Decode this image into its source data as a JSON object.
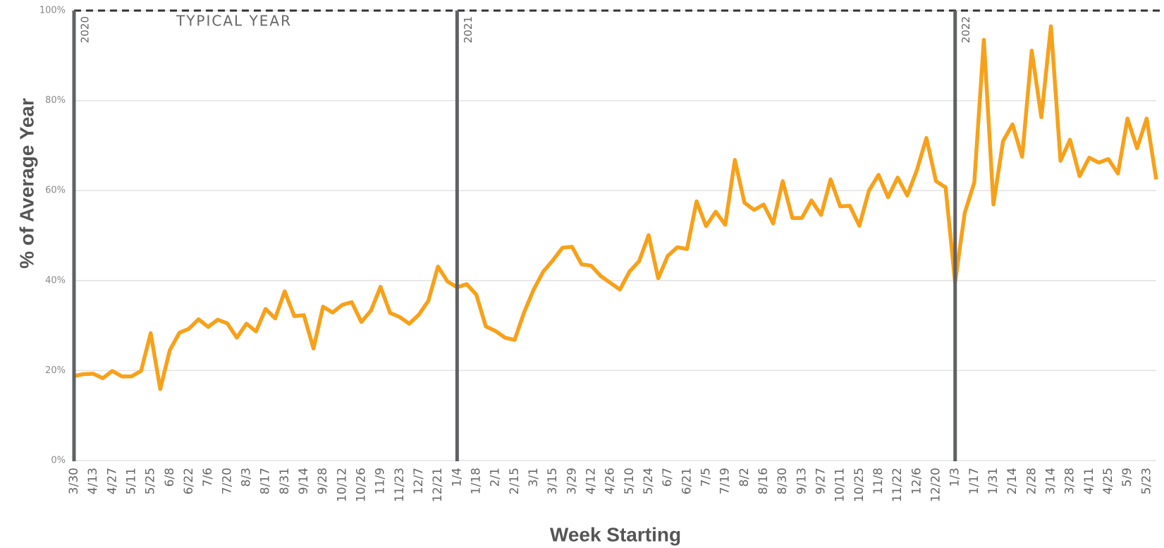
{
  "chart_data": {
    "type": "line",
    "y_label": "% of Average Year",
    "x_label": "Week Starting",
    "categories": [
      "3/30",
      null,
      "4/13",
      null,
      "4/27",
      null,
      "5/11",
      null,
      "5/25",
      null,
      "6/8",
      null,
      "6/22",
      null,
      "7/6",
      null,
      "7/20",
      null,
      "8/3",
      null,
      "8/17",
      null,
      "8/31",
      null,
      "9/14",
      null,
      "9/28",
      null,
      "10/12",
      null,
      "10/26",
      null,
      "11/9",
      null,
      "11/23",
      null,
      "12/7",
      null,
      "12/21",
      null,
      "1/4",
      null,
      "1/18",
      null,
      "2/1",
      null,
      "2/15",
      null,
      "3/1",
      null,
      "3/15",
      null,
      "3/29",
      null,
      "4/12",
      null,
      "4/26",
      null,
      "5/10",
      null,
      "5/24",
      null,
      "6/7",
      null,
      "6/21",
      null,
      "7/5",
      null,
      "7/19",
      null,
      "8/2",
      null,
      "8/16",
      null,
      "8/30",
      null,
      "9/13",
      null,
      "9/27",
      null,
      "10/11",
      null,
      "10/25",
      null,
      "11/8",
      null,
      "11/22",
      null,
      "12/6",
      null,
      "12/20",
      null,
      "1/3",
      null,
      "1/17",
      null,
      "1/31",
      null,
      "2/14",
      null,
      "2/28",
      null,
      "3/14",
      null,
      "3/28",
      null,
      "4/11",
      null,
      "4/25",
      null,
      "5/9",
      null,
      "5/23",
      null
    ],
    "values": [
      18.8,
      19.2,
      19.3,
      18.3,
      19.9,
      18.7,
      18.7,
      19.9,
      28.3,
      15.9,
      24.5,
      28.4,
      29.3,
      31.4,
      29.7,
      31.3,
      30.5,
      27.3,
      30.4,
      28.7,
      33.7,
      31.6,
      37.6,
      32.1,
      32.3,
      24.9,
      34.2,
      32.9,
      34.6,
      35.2,
      30.8,
      33.3,
      38.6,
      32.8,
      31.9,
      30.4,
      32.4,
      35.5,
      43.1,
      39.8,
      38.5,
      39.2,
      36.9,
      29.8,
      28.8,
      27.3,
      26.8,
      33.0,
      38.0,
      42.0,
      44.5,
      47.3,
      47.5,
      43.6,
      43.3,
      41.0,
      39.5,
      38.0,
      42.0,
      44.3,
      50.1,
      40.5,
      45.5,
      47.4,
      47.0,
      57.6,
      52.1,
      55.3,
      52.4,
      66.8,
      57.3,
      55.7,
      56.9,
      52.7,
      62.1,
      53.9,
      53.9,
      57.8,
      54.6,
      62.5,
      56.5,
      56.6,
      52.2,
      60.0,
      63.5,
      58.5,
      62.9,
      58.9,
      64.5,
      71.7,
      62.1,
      60.7,
      39.6,
      55.0,
      61.8,
      93.5,
      56.9,
      71.0,
      74.7,
      67.5,
      91.1,
      76.3,
      96.5,
      66.6,
      71.3,
      63.2,
      67.3,
      66.2,
      67.0,
      63.8,
      76.0,
      69.4,
      76.0,
      62.5
    ],
    "color": "#f7a11a",
    "ylim": [
      0,
      100
    ],
    "yticks": [
      {
        "value": 0,
        "label": "0%"
      },
      {
        "value": 20,
        "label": "20%"
      },
      {
        "value": 40,
        "label": "40%"
      },
      {
        "value": 60,
        "label": "60%"
      },
      {
        "value": 80,
        "label": "80%"
      },
      {
        "value": 100,
        "label": "100%"
      }
    ],
    "grid": true,
    "reference_line": {
      "value": 100,
      "label": "TYPICAL YEAR"
    },
    "year_markers": [
      {
        "label": "2020",
        "week": "3/30"
      },
      {
        "label": "2021",
        "week": "1/4"
      },
      {
        "label": "2022",
        "week": "1/3"
      }
    ]
  }
}
